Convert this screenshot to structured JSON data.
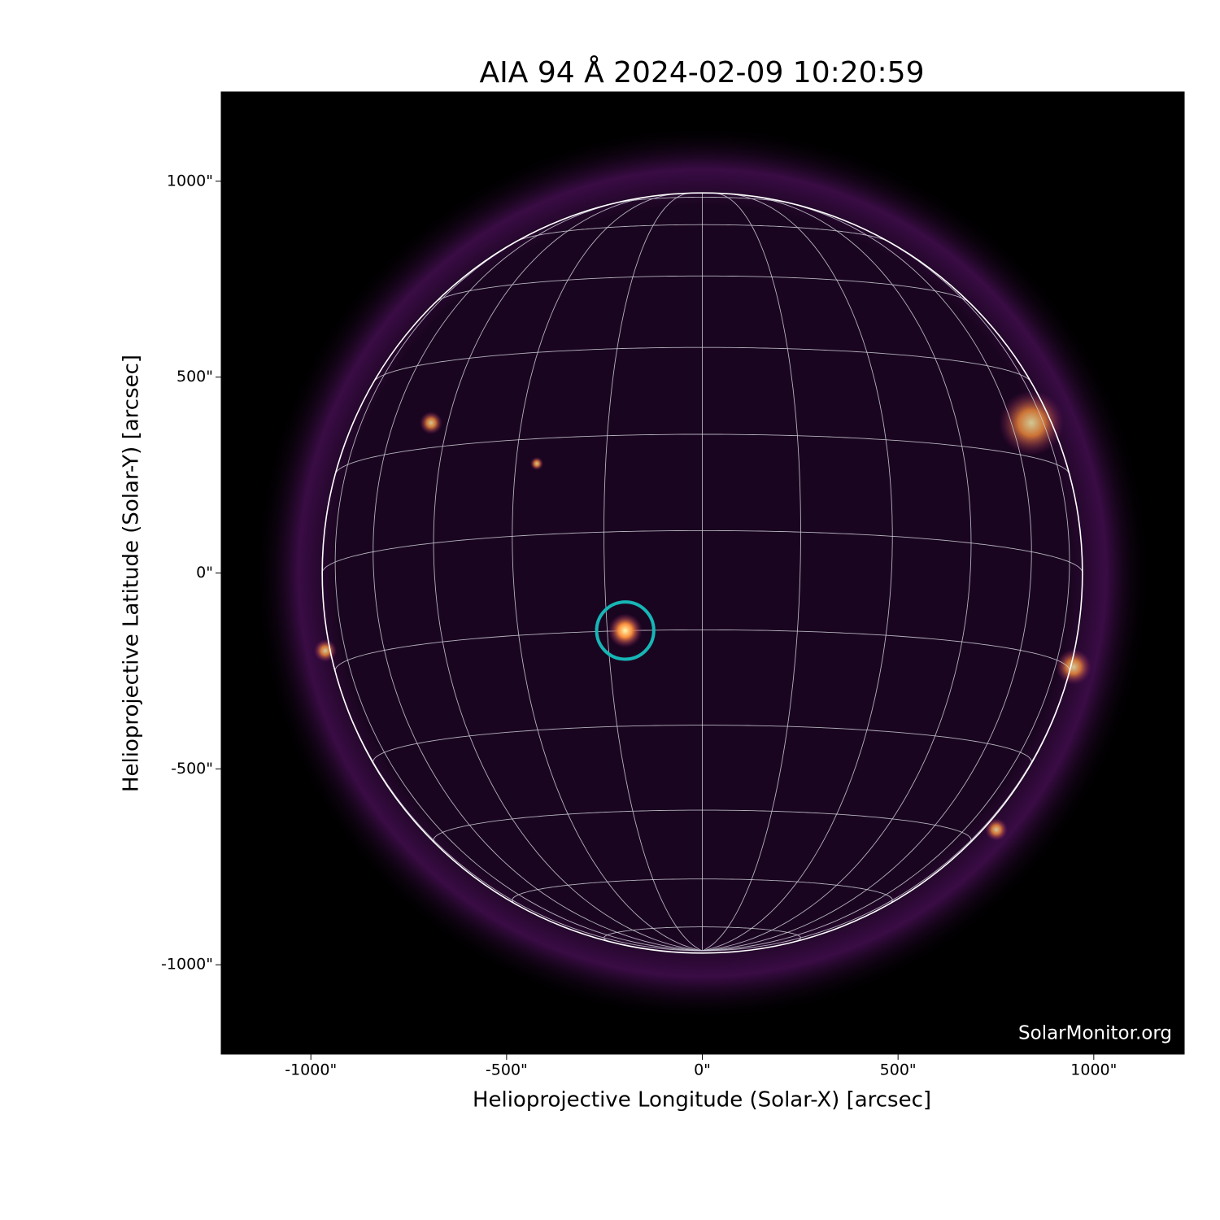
{
  "chart_data": {
    "type": "image",
    "title": "AIA 94 Å 2024-02-09 10:20:59",
    "xlabel": "Helioprojective Longitude (Solar-X) [arcsec]",
    "ylabel": "Helioprojective Latitude (Solar-Y) [arcsec]",
    "xlim": [
      -1229,
      1231
    ],
    "ylim": [
      -1228,
      1228
    ],
    "xticks": [
      {
        "value": -1000,
        "label": "-1000\""
      },
      {
        "value": -500,
        "label": "-500\""
      },
      {
        "value": 0,
        "label": "0\""
      },
      {
        "value": 500,
        "label": "500\""
      },
      {
        "value": 1000,
        "label": "1000\""
      }
    ],
    "yticks": [
      {
        "value": -1000,
        "label": "-1000\""
      },
      {
        "value": -500,
        "label": "-500\""
      },
      {
        "value": 0,
        "label": "0\""
      },
      {
        "value": 500,
        "label": "500\""
      },
      {
        "value": 1000,
        "label": "1000\""
      }
    ],
    "disk_radius": 971,
    "highlight": {
      "x": -197,
      "y": -147,
      "radius": 73,
      "color": "#17b6b6"
    },
    "annotation": "SolarMonitor.org"
  }
}
